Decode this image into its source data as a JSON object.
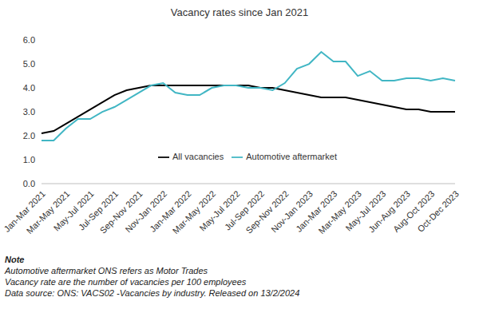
{
  "chart_data": {
    "type": "line",
    "title": "Vacancy rates since Jan 2021",
    "categories": [
      "Jan-Mar 2021",
      null,
      "Mar-May 2021",
      null,
      "May-Jul 2021",
      null,
      "Jul-Sep 2021",
      null,
      "Sep-Nov 2021",
      null,
      "Nov-Jan 2022",
      null,
      "Jan-Mar 2022",
      null,
      "Mar-May 2022",
      null,
      "May-Jul 2022",
      null,
      "Jul-Sep 2022",
      null,
      "Sep-Nov 2022",
      null,
      "Nov-Jan 2023",
      null,
      "Jan-Mar 2023",
      null,
      "Mar-May 2023",
      null,
      "May-Jul 2023",
      null,
      "Jun-Aug 2023",
      null,
      "Aug-Oct 2023",
      null,
      "Oct-Dec 2023"
    ],
    "series": [
      {
        "name": "All vacancies",
        "color": "#000000",
        "values": [
          2.1,
          2.2,
          2.5,
          2.8,
          3.1,
          3.4,
          3.7,
          3.9,
          4.0,
          4.1,
          4.1,
          4.1,
          4.1,
          4.1,
          4.1,
          4.1,
          4.1,
          4.1,
          4.0,
          4.0,
          3.9,
          3.8,
          3.7,
          3.6,
          3.6,
          3.6,
          3.5,
          3.4,
          3.3,
          3.2,
          3.1,
          3.1,
          3.0,
          3.0,
          3.0
        ]
      },
      {
        "name": "Automotive aftermarket",
        "color": "#41b6c4",
        "values": [
          1.8,
          1.8,
          2.3,
          2.7,
          2.7,
          3.0,
          3.2,
          3.5,
          3.8,
          4.1,
          4.2,
          3.8,
          3.7,
          3.7,
          4.0,
          4.1,
          4.1,
          4.0,
          4.0,
          3.9,
          4.2,
          4.8,
          5.0,
          5.5,
          5.1,
          5.1,
          4.5,
          4.7,
          4.3,
          4.3,
          4.4,
          4.4,
          4.3,
          4.4,
          4.3
        ]
      }
    ],
    "ylim": [
      0,
      6
    ],
    "yticks": [
      {
        "value": 0,
        "label": "0.0"
      },
      {
        "value": 1,
        "label": "1.0"
      },
      {
        "value": 2,
        "label": "2.0"
      },
      {
        "value": 3,
        "label": "3.0"
      },
      {
        "value": 4,
        "label": "4.0"
      },
      {
        "value": 5,
        "label": "5.0"
      },
      {
        "value": 6,
        "label": "6.0"
      }
    ],
    "grid": false,
    "legend": "bottom",
    "annotations": [
      "Note",
      "Automotive aftermarket ONS refers as Motor Trades",
      "Vacancy rate are the number of vacancies per 100 employees",
      "Data source: ONS: VACS02 -Vacancies by industry. Released on 13/2/2024"
    ]
  }
}
